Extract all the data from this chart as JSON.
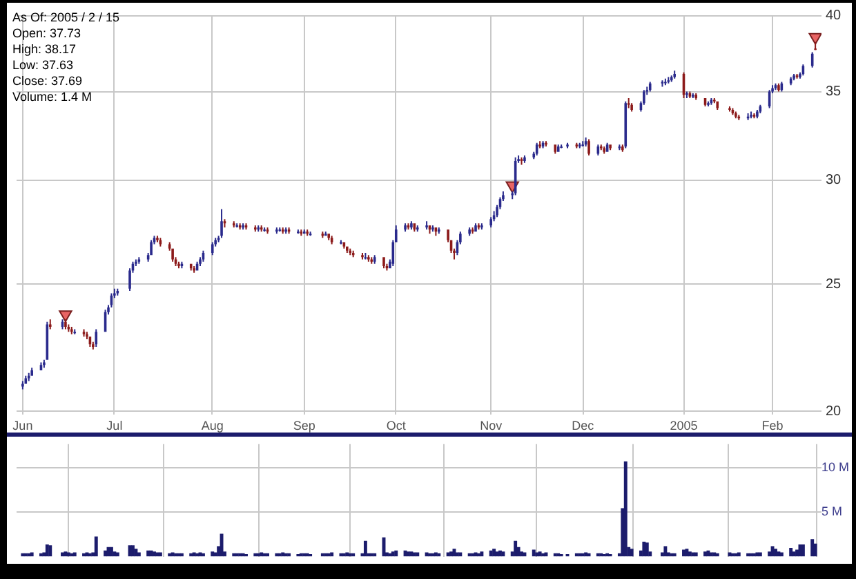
{
  "chart_data": [
    {
      "type": "candlestick",
      "x": [
        "2004-06-01",
        "2004-06-02",
        "2004-06-03",
        "2004-06-04",
        "2004-06-07",
        "2004-06-08",
        "2004-06-09",
        "2004-06-10",
        "2004-06-14",
        "2004-06-15",
        "2004-06-16",
        "2004-06-17",
        "2004-06-18",
        "2004-06-21",
        "2004-06-22",
        "2004-06-23",
        "2004-06-24",
        "2004-06-25",
        "2004-06-28",
        "2004-06-29",
        "2004-06-30",
        "2004-07-01",
        "2004-07-02",
        "2004-07-06",
        "2004-07-07",
        "2004-07-08",
        "2004-07-09",
        "2004-07-12",
        "2004-07-13",
        "2004-07-14",
        "2004-07-15",
        "2004-07-16",
        "2004-07-19",
        "2004-07-20",
        "2004-07-21",
        "2004-07-22",
        "2004-07-23",
        "2004-07-26",
        "2004-07-27",
        "2004-07-28",
        "2004-07-29",
        "2004-07-30",
        "2004-08-02",
        "2004-08-03",
        "2004-08-04",
        "2004-08-05",
        "2004-08-06",
        "2004-08-09",
        "2004-08-10",
        "2004-08-11",
        "2004-08-12",
        "2004-08-13",
        "2004-08-16",
        "2004-08-17",
        "2004-08-18",
        "2004-08-19",
        "2004-08-20",
        "2004-08-23",
        "2004-08-24",
        "2004-08-25",
        "2004-08-26",
        "2004-08-27",
        "2004-08-30",
        "2004-08-31",
        "2004-09-01",
        "2004-09-02",
        "2004-09-03",
        "2004-09-07",
        "2004-09-08",
        "2004-09-09",
        "2004-09-10",
        "2004-09-13",
        "2004-09-14",
        "2004-09-15",
        "2004-09-16",
        "2004-09-17",
        "2004-09-20",
        "2004-09-21",
        "2004-09-22",
        "2004-09-23",
        "2004-09-24",
        "2004-09-27",
        "2004-09-28",
        "2004-09-29",
        "2004-09-30",
        "2004-10-01",
        "2004-10-04",
        "2004-10-05",
        "2004-10-06",
        "2004-10-07",
        "2004-10-08",
        "2004-10-11",
        "2004-10-12",
        "2004-10-13",
        "2004-10-14",
        "2004-10-15",
        "2004-10-18",
        "2004-10-19",
        "2004-10-20",
        "2004-10-21",
        "2004-10-22",
        "2004-10-25",
        "2004-10-26",
        "2004-10-27",
        "2004-10-28",
        "2004-10-29",
        "2004-11-01",
        "2004-11-02",
        "2004-11-03",
        "2004-11-04",
        "2004-11-05",
        "2004-11-08",
        "2004-11-09",
        "2004-11-10",
        "2004-11-11",
        "2004-11-12",
        "2004-11-15",
        "2004-11-16",
        "2004-11-17",
        "2004-11-18",
        "2004-11-19",
        "2004-11-22",
        "2004-11-23",
        "2004-11-24",
        "2004-11-26",
        "2004-11-29",
        "2004-11-30",
        "2004-12-01",
        "2004-12-02",
        "2004-12-03",
        "2004-12-06",
        "2004-12-07",
        "2004-12-08",
        "2004-12-09",
        "2004-12-10",
        "2004-12-13",
        "2004-12-14",
        "2004-12-15",
        "2004-12-16",
        "2004-12-17",
        "2004-12-20",
        "2004-12-21",
        "2004-12-22",
        "2004-12-23",
        "2004-12-27",
        "2004-12-28",
        "2004-12-29",
        "2004-12-30",
        "2004-12-31",
        "2005-01-03",
        "2005-01-04",
        "2005-01-05",
        "2005-01-06",
        "2005-01-07",
        "2005-01-10",
        "2005-01-11",
        "2005-01-12",
        "2005-01-13",
        "2005-01-14",
        "2005-01-18",
        "2005-01-19",
        "2005-01-20",
        "2005-01-21",
        "2005-01-24",
        "2005-01-25",
        "2005-01-26",
        "2005-01-27",
        "2005-01-28",
        "2005-01-31",
        "2005-02-01",
        "2005-02-02",
        "2005-02-03",
        "2005-02-04",
        "2005-02-07",
        "2005-02-08",
        "2005-02-09",
        "2005-02-10",
        "2005-02-11",
        "2005-02-14",
        "2005-02-15"
      ],
      "ohlc": [
        [
          20.9,
          21.1,
          20.8,
          21.0
        ],
        [
          21.0,
          21.3,
          21.0,
          21.2
        ],
        [
          21.2,
          21.4,
          21.1,
          21.3
        ],
        [
          21.3,
          21.6,
          21.3,
          21.5
        ],
        [
          21.5,
          21.8,
          21.5,
          21.7
        ],
        [
          21.7,
          21.9,
          21.6,
          21.8
        ],
        [
          21.9,
          23.4,
          21.9,
          23.3
        ],
        [
          23.3,
          23.5,
          23.1,
          23.2
        ],
        [
          23.2,
          23.5,
          23.1,
          23.4
        ],
        [
          23.4,
          23.5,
          23.1,
          23.2
        ],
        [
          23.2,
          23.3,
          23.0,
          23.1
        ],
        [
          23.1,
          23.2,
          22.9,
          23.0
        ],
        [
          23.0,
          23.1,
          22.9,
          23.0
        ],
        [
          23.0,
          23.1,
          22.8,
          22.9
        ],
        [
          22.9,
          23.0,
          22.7,
          22.8
        ],
        [
          22.8,
          22.8,
          22.4,
          22.5
        ],
        [
          22.5,
          22.6,
          22.3,
          22.4
        ],
        [
          22.5,
          23.1,
          22.4,
          23.0
        ],
        [
          23.0,
          23.9,
          23.0,
          23.8
        ],
        [
          23.8,
          24.1,
          23.7,
          24.0
        ],
        [
          24.1,
          24.6,
          24.0,
          24.5
        ],
        [
          24.5,
          24.8,
          24.4,
          24.6
        ],
        [
          24.6,
          24.8,
          24.5,
          24.7
        ],
        [
          24.8,
          25.7,
          24.7,
          25.6
        ],
        [
          25.6,
          26.0,
          25.5,
          25.9
        ],
        [
          25.9,
          26.1,
          25.8,
          26.0
        ],
        [
          26.0,
          26.2,
          25.9,
          26.1
        ],
        [
          26.1,
          26.4,
          26.0,
          26.3
        ],
        [
          26.3,
          27.0,
          26.3,
          26.9
        ],
        [
          26.9,
          27.2,
          26.8,
          27.1
        ],
        [
          27.1,
          27.2,
          26.9,
          27.0
        ],
        [
          27.0,
          27.1,
          26.7,
          26.8
        ],
        [
          26.8,
          26.9,
          26.5,
          26.6
        ],
        [
          26.6,
          26.6,
          26.0,
          26.1
        ],
        [
          26.1,
          26.2,
          25.8,
          25.9
        ],
        [
          25.9,
          26.0,
          25.7,
          25.8
        ],
        [
          25.8,
          26.0,
          25.7,
          25.9
        ],
        [
          25.9,
          25.9,
          25.6,
          25.7
        ],
        [
          25.7,
          25.8,
          25.5,
          25.6
        ],
        [
          25.6,
          26.0,
          25.6,
          25.9
        ],
        [
          25.9,
          26.2,
          25.8,
          26.1
        ],
        [
          26.1,
          26.5,
          26.0,
          26.4
        ],
        [
          26.4,
          26.9,
          26.3,
          26.8
        ],
        [
          26.8,
          27.1,
          26.7,
          27.0
        ],
        [
          27.0,
          27.2,
          26.9,
          27.1
        ],
        [
          27.2,
          28.5,
          27.1,
          27.9
        ],
        [
          27.9,
          28.0,
          27.6,
          27.8
        ],
        [
          27.8,
          27.9,
          27.6,
          27.7
        ],
        [
          27.7,
          27.8,
          27.6,
          27.7
        ],
        [
          27.7,
          27.8,
          27.5,
          27.6
        ],
        [
          27.6,
          27.8,
          27.5,
          27.7
        ],
        [
          27.7,
          27.8,
          27.5,
          27.6
        ],
        [
          27.6,
          27.7,
          27.4,
          27.5
        ],
        [
          27.5,
          27.7,
          27.4,
          27.6
        ],
        [
          27.6,
          27.7,
          27.4,
          27.5
        ],
        [
          27.5,
          27.6,
          27.4,
          27.5
        ],
        [
          27.5,
          27.6,
          27.3,
          27.4
        ],
        [
          27.4,
          27.6,
          27.3,
          27.5
        ],
        [
          27.5,
          27.6,
          27.4,
          27.5
        ],
        [
          27.5,
          27.6,
          27.3,
          27.4
        ],
        [
          27.4,
          27.6,
          27.3,
          27.5
        ],
        [
          27.5,
          27.6,
          27.3,
          27.4
        ],
        [
          27.4,
          27.5,
          27.3,
          27.4
        ],
        [
          27.4,
          27.5,
          27.2,
          27.3
        ],
        [
          27.3,
          27.5,
          27.3,
          27.4
        ],
        [
          27.4,
          27.5,
          27.2,
          27.3
        ],
        [
          27.3,
          27.4,
          27.2,
          27.3
        ],
        [
          27.3,
          27.4,
          27.1,
          27.2
        ],
        [
          27.2,
          27.4,
          27.2,
          27.3
        ],
        [
          27.3,
          27.3,
          27.0,
          27.1
        ],
        [
          27.1,
          27.2,
          26.8,
          26.9
        ],
        [
          26.9,
          27.0,
          26.8,
          26.9
        ],
        [
          26.9,
          26.9,
          26.6,
          26.7
        ],
        [
          26.7,
          26.7,
          26.4,
          26.5
        ],
        [
          26.5,
          26.6,
          26.3,
          26.4
        ],
        [
          26.4,
          26.5,
          26.2,
          26.3
        ],
        [
          26.3,
          26.4,
          26.1,
          26.2
        ],
        [
          26.2,
          26.4,
          26.1,
          26.2
        ],
        [
          26.2,
          26.3,
          26.0,
          26.1
        ],
        [
          26.1,
          26.2,
          25.9,
          26.0
        ],
        [
          26.0,
          26.3,
          25.9,
          26.2
        ],
        [
          26.2,
          26.2,
          25.7,
          25.8
        ],
        [
          25.8,
          25.9,
          25.6,
          25.7
        ],
        [
          25.7,
          26.1,
          25.7,
          26.0
        ],
        [
          25.9,
          27.0,
          25.8,
          26.9
        ],
        [
          26.9,
          27.7,
          26.9,
          27.5
        ],
        [
          27.5,
          27.8,
          27.4,
          27.7
        ],
        [
          27.7,
          27.8,
          27.5,
          27.6
        ],
        [
          27.6,
          27.9,
          27.5,
          27.8
        ],
        [
          27.8,
          27.8,
          27.4,
          27.5
        ],
        [
          27.5,
          27.7,
          27.4,
          27.6
        ],
        [
          27.6,
          27.9,
          27.5,
          27.7
        ],
        [
          27.7,
          27.7,
          27.3,
          27.5
        ],
        [
          27.5,
          27.7,
          27.4,
          27.6
        ],
        [
          27.6,
          27.6,
          27.2,
          27.4
        ],
        [
          27.4,
          27.6,
          27.3,
          27.5
        ],
        [
          27.5,
          27.5,
          26.9,
          27.0
        ],
        [
          27.0,
          27.0,
          26.4,
          26.5
        ],
        [
          26.5,
          26.6,
          26.1,
          26.4
        ],
        [
          26.4,
          27.0,
          26.3,
          26.9
        ],
        [
          26.9,
          27.4,
          26.8,
          27.3
        ],
        [
          27.3,
          27.6,
          27.2,
          27.5
        ],
        [
          27.5,
          27.6,
          27.3,
          27.4
        ],
        [
          27.4,
          27.8,
          27.4,
          27.7
        ],
        [
          27.7,
          27.8,
          27.5,
          27.6
        ],
        [
          27.6,
          27.8,
          27.5,
          27.7
        ],
        [
          27.7,
          28.1,
          27.6,
          28.0
        ],
        [
          28.0,
          28.4,
          27.9,
          28.2
        ],
        [
          28.2,
          28.7,
          28.1,
          28.6
        ],
        [
          28.6,
          29.1,
          28.5,
          29.0
        ],
        [
          29.0,
          29.4,
          28.9,
          29.2
        ],
        [
          29.2,
          29.4,
          29.0,
          29.3
        ],
        [
          29.3,
          31.2,
          29.2,
          31.0
        ],
        [
          31.0,
          31.3,
          30.9,
          31.1
        ],
        [
          31.1,
          31.2,
          30.8,
          31.0
        ],
        [
          31.0,
          31.3,
          30.9,
          31.2
        ],
        [
          31.2,
          31.5,
          31.1,
          31.4
        ],
        [
          31.4,
          32.0,
          31.3,
          31.9
        ],
        [
          31.9,
          32.1,
          31.7,
          31.8
        ],
        [
          31.8,
          32.1,
          31.7,
          32.0
        ],
        [
          32.0,
          32.1,
          31.8,
          31.9
        ],
        [
          31.9,
          31.9,
          31.4,
          31.5
        ],
        [
          31.5,
          31.9,
          31.5,
          31.8
        ],
        [
          31.8,
          31.9,
          31.7,
          31.8
        ],
        [
          31.8,
          32.0,
          31.7,
          31.9
        ],
        [
          31.9,
          32.0,
          31.7,
          31.8
        ],
        [
          31.8,
          32.0,
          31.7,
          31.9
        ],
        [
          31.9,
          32.1,
          31.8,
          31.9
        ],
        [
          31.9,
          32.3,
          31.8,
          32.1
        ],
        [
          32.1,
          32.2,
          31.3,
          31.4
        ],
        [
          31.4,
          31.9,
          31.3,
          31.8
        ],
        [
          31.8,
          31.9,
          31.6,
          31.7
        ],
        [
          31.7,
          31.8,
          31.4,
          31.5
        ],
        [
          31.5,
          32.0,
          31.5,
          31.9
        ],
        [
          31.9,
          31.9,
          31.6,
          31.7
        ],
        [
          31.7,
          31.9,
          31.6,
          31.8
        ],
        [
          31.8,
          31.9,
          31.5,
          31.6
        ],
        [
          31.8,
          34.4,
          31.7,
          34.3
        ],
        [
          34.3,
          34.6,
          34.0,
          34.2
        ],
        [
          34.2,
          34.3,
          33.8,
          33.9
        ],
        [
          33.9,
          34.4,
          33.8,
          34.3
        ],
        [
          34.3,
          35.1,
          34.2,
          35.0
        ],
        [
          35.0,
          35.3,
          34.8,
          35.1
        ],
        [
          35.1,
          35.6,
          35.0,
          35.5
        ],
        [
          35.5,
          35.7,
          35.3,
          35.6
        ],
        [
          35.6,
          35.8,
          35.4,
          35.6
        ],
        [
          35.6,
          35.9,
          35.5,
          35.7
        ],
        [
          35.7,
          36.0,
          35.6,
          35.9
        ],
        [
          35.9,
          36.3,
          35.8,
          36.1
        ],
        [
          36.1,
          36.2,
          34.6,
          34.8
        ],
        [
          34.8,
          35.0,
          34.6,
          34.9
        ],
        [
          34.9,
          35.0,
          34.6,
          34.7
        ],
        [
          34.7,
          34.9,
          34.6,
          34.8
        ],
        [
          34.8,
          34.9,
          34.5,
          34.6
        ],
        [
          34.6,
          34.6,
          34.1,
          34.2
        ],
        [
          34.2,
          34.4,
          34.1,
          34.3
        ],
        [
          34.3,
          34.6,
          34.2,
          34.5
        ],
        [
          34.5,
          34.6,
          34.3,
          34.4
        ],
        [
          34.4,
          34.4,
          33.9,
          34.0
        ],
        [
          34.0,
          34.1,
          33.8,
          33.9
        ],
        [
          33.9,
          34.0,
          33.6,
          33.7
        ],
        [
          33.7,
          33.8,
          33.4,
          33.5
        ],
        [
          33.5,
          33.6,
          33.3,
          33.4
        ],
        [
          33.4,
          33.7,
          33.3,
          33.5
        ],
        [
          33.5,
          33.8,
          33.4,
          33.6
        ],
        [
          33.6,
          33.7,
          33.4,
          33.5
        ],
        [
          33.5,
          33.9,
          33.4,
          33.8
        ],
        [
          33.8,
          34.2,
          33.7,
          34.1
        ],
        [
          34.1,
          35.1,
          34.0,
          35.0
        ],
        [
          35.0,
          35.4,
          34.9,
          35.2
        ],
        [
          35.2,
          35.5,
          35.1,
          35.4
        ],
        [
          35.4,
          35.5,
          35.0,
          35.1
        ],
        [
          35.1,
          35.6,
          35.0,
          35.5
        ],
        [
          35.5,
          35.9,
          35.4,
          35.8
        ],
        [
          35.8,
          36.1,
          35.7,
          36.0
        ],
        [
          36.0,
          36.1,
          35.8,
          35.9
        ],
        [
          35.9,
          36.2,
          35.8,
          36.1
        ],
        [
          36.1,
          36.7,
          36.0,
          36.6
        ],
        [
          36.6,
          37.5,
          36.5,
          37.4
        ],
        [
          37.73,
          38.17,
          37.63,
          37.69
        ]
      ],
      "colors": [
        "#2a2a8c",
        "#2a2a8c",
        "#2a2a8c",
        "#2a2a8c",
        "#2a2a8c",
        "#2a2a8c",
        "#2a2a8c",
        "#8c1a1a",
        "#2a2a8c",
        "#8c1a1a",
        "#8c1a1a",
        "#8c1a1a",
        "#2a2a8c",
        "#8c1a1a",
        "#8c1a1a",
        "#8c1a1a",
        "#8c1a1a",
        "#2a2a8c",
        "#2a2a8c",
        "#2a2a8c",
        "#2a2a8c",
        "#2a2a8c",
        "#2a2a8c",
        "#2a2a8c",
        "#2a2a8c",
        "#2a2a8c",
        "#2a2a8c",
        "#2a2a8c",
        "#2a2a8c",
        "#2a2a8c",
        "#8c1a1a",
        "#8c1a1a",
        "#8c1a1a",
        "#8c1a1a",
        "#8c1a1a",
        "#8c1a1a",
        "#2a2a8c",
        "#8c1a1a",
        "#8c1a1a",
        "#2a2a8c",
        "#2a2a8c",
        "#2a2a8c",
        "#2a2a8c",
        "#2a2a8c",
        "#2a2a8c",
        "#2a2a8c",
        "#8c1a1a",
        "#8c1a1a",
        "#2a2a8c",
        "#8c1a1a",
        "#2a2a8c",
        "#8c1a1a",
        "#8c1a1a",
        "#2a2a8c",
        "#8c1a1a",
        "#2a2a8c",
        "#8c1a1a",
        "#2a2a8c",
        "#2a2a8c",
        "#8c1a1a",
        "#2a2a8c",
        "#8c1a1a",
        "#2a2a8c",
        "#8c1a1a",
        "#2a2a8c",
        "#8c1a1a",
        "#2a2a8c",
        "#8c1a1a",
        "#2a2a8c",
        "#8c1a1a",
        "#8c1a1a",
        "#2a2a8c",
        "#8c1a1a",
        "#8c1a1a",
        "#8c1a1a",
        "#8c1a1a",
        "#8c1a1a",
        "#2a2a8c",
        "#8c1a1a",
        "#8c1a1a",
        "#2a2a8c",
        "#8c1a1a",
        "#8c1a1a",
        "#2a2a8c",
        "#2a2a8c",
        "#2a2a8c",
        "#2a2a8c",
        "#8c1a1a",
        "#2a2a8c",
        "#8c1a1a",
        "#2a2a8c",
        "#2a2a8c",
        "#8c1a1a",
        "#2a2a8c",
        "#8c1a1a",
        "#2a2a8c",
        "#8c1a1a",
        "#8c1a1a",
        "#8c1a1a",
        "#2a2a8c",
        "#2a2a8c",
        "#2a2a8c",
        "#8c1a1a",
        "#2a2a8c",
        "#8c1a1a",
        "#2a2a8c",
        "#2a2a8c",
        "#2a2a8c",
        "#2a2a8c",
        "#2a2a8c",
        "#2a2a8c",
        "#2a2a8c",
        "#2a2a8c",
        "#2a2a8c",
        "#8c1a1a",
        "#2a2a8c",
        "#2a2a8c",
        "#2a2a8c",
        "#8c1a1a",
        "#2a2a8c",
        "#8c1a1a",
        "#8c1a1a",
        "#2a2a8c",
        "#2a2a8c",
        "#2a2a8c",
        "#8c1a1a",
        "#2a2a8c",
        "#2a2a8c",
        "#2a2a8c",
        "#8c1a1a",
        "#2a2a8c",
        "#8c1a1a",
        "#8c1a1a",
        "#2a2a8c",
        "#8c1a1a",
        "#2a2a8c",
        "#8c1a1a",
        "#2a2a8c",
        "#8c1a1a",
        "#8c1a1a",
        "#2a2a8c",
        "#2a2a8c",
        "#2a2a8c",
        "#2a2a8c",
        "#2a2a8c",
        "#2a2a8c",
        "#2a2a8c",
        "#2a2a8c",
        "#2a2a8c",
        "#8c1a1a",
        "#2a2a8c",
        "#8c1a1a",
        "#2a2a8c",
        "#8c1a1a",
        "#8c1a1a",
        "#2a2a8c",
        "#2a2a8c",
        "#8c1a1a",
        "#8c1a1a",
        "#8c1a1a",
        "#8c1a1a",
        "#8c1a1a",
        "#8c1a1a",
        "#2a2a8c",
        "#2a2a8c",
        "#8c1a1a",
        "#2a2a8c",
        "#2a2a8c",
        "#2a2a8c",
        "#2a2a8c",
        "#2a2a8c",
        "#8c1a1a",
        "#2a2a8c",
        "#2a2a8c",
        "#2a2a8c",
        "#8c1a1a",
        "#2a2a8c",
        "#2a2a8c",
        "#2a2a8c",
        "#8c1a1a"
      ],
      "series": [
        {
          "type": "scatter",
          "x": [
            "2004-06-15",
            "2004-11-08",
            "2005-02-15"
          ],
          "values": [
            23.7,
            29.7,
            38.5
          ],
          "color": "#e86464",
          "marker": "triangle"
        }
      ],
      "xlim": [
        "2004-05-30",
        "2005-02-17"
      ],
      "xticks": [
        {
          "value": "2004-06-01",
          "label": "Jun"
        },
        {
          "value": "2004-07-01",
          "label": "Jul"
        },
        {
          "value": "2004-08-02",
          "label": "Aug"
        },
        {
          "value": "2004-09-01",
          "label": "Sep"
        },
        {
          "value": "2004-10-01",
          "label": "Oct"
        },
        {
          "value": "2004-11-01",
          "label": "Nov"
        },
        {
          "value": "2004-12-01",
          "label": "Dec"
        },
        {
          "value": "2005-01-03",
          "label": "2005"
        },
        {
          "value": "2005-02-01",
          "label": "Feb"
        }
      ],
      "ylim": [
        19.9,
        40
      ],
      "yticks": [
        20,
        25,
        30,
        35,
        40
      ],
      "log": true,
      "grid": true,
      "annotations": [
        "As Of: 2005 / 2 / 15",
        "Open: 37.73",
        "High: 38.17",
        "Low: 37.63",
        "Close: 37.69",
        "Volume: 1.4 M"
      ]
    },
    {
      "type": "bar",
      "x": [
        "2004-06-01",
        "2004-06-02",
        "2004-06-03",
        "2004-06-04",
        "2004-06-07",
        "2004-06-08",
        "2004-06-09",
        "2004-06-10",
        "2004-06-14",
        "2004-06-15",
        "2004-06-16",
        "2004-06-17",
        "2004-06-18",
        "2004-06-21",
        "2004-06-22",
        "2004-06-23",
        "2004-06-24",
        "2004-06-25",
        "2004-06-28",
        "2004-06-29",
        "2004-06-30",
        "2004-07-01",
        "2004-07-02",
        "2004-07-06",
        "2004-07-07",
        "2004-07-08",
        "2004-07-09",
        "2004-07-12",
        "2004-07-13",
        "2004-07-14",
        "2004-07-15",
        "2004-07-16",
        "2004-07-19",
        "2004-07-20",
        "2004-07-21",
        "2004-07-22",
        "2004-07-23",
        "2004-07-26",
        "2004-07-27",
        "2004-07-28",
        "2004-07-29",
        "2004-07-30",
        "2004-08-02",
        "2004-08-03",
        "2004-08-04",
        "2004-08-05",
        "2004-08-06",
        "2004-08-09",
        "2004-08-10",
        "2004-08-11",
        "2004-08-12",
        "2004-08-13",
        "2004-08-16",
        "2004-08-17",
        "2004-08-18",
        "2004-08-19",
        "2004-08-20",
        "2004-08-23",
        "2004-08-24",
        "2004-08-25",
        "2004-08-26",
        "2004-08-27",
        "2004-08-30",
        "2004-08-31",
        "2004-09-01",
        "2004-09-02",
        "2004-09-03",
        "2004-09-07",
        "2004-09-08",
        "2004-09-09",
        "2004-09-10",
        "2004-09-13",
        "2004-09-14",
        "2004-09-15",
        "2004-09-16",
        "2004-09-17",
        "2004-09-20",
        "2004-09-21",
        "2004-09-22",
        "2004-09-23",
        "2004-09-24",
        "2004-09-27",
        "2004-09-28",
        "2004-09-29",
        "2004-09-30",
        "2004-10-01",
        "2004-10-04",
        "2004-10-05",
        "2004-10-06",
        "2004-10-07",
        "2004-10-08",
        "2004-10-11",
        "2004-10-12",
        "2004-10-13",
        "2004-10-14",
        "2004-10-15",
        "2004-10-18",
        "2004-10-19",
        "2004-10-20",
        "2004-10-21",
        "2004-10-22",
        "2004-10-25",
        "2004-10-26",
        "2004-10-27",
        "2004-10-28",
        "2004-10-29",
        "2004-11-01",
        "2004-11-02",
        "2004-11-03",
        "2004-11-04",
        "2004-11-05",
        "2004-11-08",
        "2004-11-09",
        "2004-11-10",
        "2004-11-11",
        "2004-11-12",
        "2004-11-15",
        "2004-11-16",
        "2004-11-17",
        "2004-11-18",
        "2004-11-19",
        "2004-11-22",
        "2004-11-23",
        "2004-11-24",
        "2004-11-26",
        "2004-11-29",
        "2004-11-30",
        "2004-12-01",
        "2004-12-02",
        "2004-12-03",
        "2004-12-06",
        "2004-12-07",
        "2004-12-08",
        "2004-12-09",
        "2004-12-10",
        "2004-12-13",
        "2004-12-14",
        "2004-12-15",
        "2004-12-16",
        "2004-12-17",
        "2004-12-20",
        "2004-12-21",
        "2004-12-22",
        "2004-12-23",
        "2004-12-27",
        "2004-12-28",
        "2004-12-29",
        "2004-12-30",
        "2004-12-31",
        "2005-01-03",
        "2005-01-04",
        "2005-01-05",
        "2005-01-06",
        "2005-01-07",
        "2005-01-10",
        "2005-01-11",
        "2005-01-12",
        "2005-01-13",
        "2005-01-14",
        "2005-01-18",
        "2005-01-19",
        "2005-01-20",
        "2005-01-21",
        "2005-01-24",
        "2005-01-25",
        "2005-01-26",
        "2005-01-27",
        "2005-01-28",
        "2005-01-31",
        "2005-02-01",
        "2005-02-02",
        "2005-02-03",
        "2005-02-04",
        "2005-02-07",
        "2005-02-08",
        "2005-02-09",
        "2005-02-10",
        "2005-02-11",
        "2005-02-14",
        "2005-02-15"
      ],
      "values": [
        0.3,
        0.3,
        0.3,
        0.4,
        0.3,
        0.4,
        1.3,
        1.2,
        0.4,
        0.5,
        0.4,
        0.3,
        0.4,
        0.3,
        0.4,
        0.3,
        0.4,
        2.2,
        0.6,
        1.0,
        1.0,
        0.5,
        0.4,
        1.2,
        1.2,
        0.8,
        0.4,
        0.6,
        0.6,
        0.5,
        0.4,
        0.4,
        0.3,
        0.4,
        0.3,
        0.3,
        0.3,
        0.3,
        0.4,
        0.3,
        0.4,
        0.3,
        0.5,
        0.4,
        1.1,
        2.5,
        0.5,
        0.3,
        0.3,
        0.3,
        0.3,
        0.2,
        0.3,
        0.3,
        0.4,
        0.3,
        0.3,
        0.3,
        0.3,
        0.4,
        0.3,
        0.3,
        0.2,
        0.3,
        0.3,
        0.3,
        0.2,
        0.3,
        0.3,
        0.3,
        0.4,
        0.3,
        0.3,
        0.4,
        0.3,
        0.3,
        0.3,
        1.7,
        0.3,
        0.3,
        0.3,
        2.1,
        0.4,
        0.3,
        0.5,
        0.6,
        0.6,
        0.5,
        0.5,
        0.4,
        0.4,
        0.4,
        0.3,
        0.3,
        0.4,
        0.3,
        0.4,
        0.5,
        0.8,
        0.4,
        0.4,
        0.3,
        0.3,
        0.4,
        0.3,
        0.5,
        0.6,
        0.8,
        0.5,
        0.6,
        0.5,
        0.5,
        1.7,
        1.0,
        0.5,
        0.4,
        0.7,
        0.4,
        0.5,
        0.3,
        0.4,
        0.3,
        0.3,
        0.2,
        0.2,
        0.3,
        0.3,
        0.3,
        0.4,
        0.3,
        0.3,
        0.3,
        0.2,
        0.3,
        0.2,
        0.3,
        5.4,
        10.7,
        1.0,
        0.8,
        0.6,
        1.6,
        1.5,
        0.5,
        0.4,
        1.1,
        0.4,
        0.3,
        0.3,
        0.7,
        0.8,
        0.5,
        0.4,
        0.4,
        0.5,
        0.6,
        0.4,
        0.4,
        0.3,
        0.4,
        0.3,
        0.3,
        0.4,
        0.3,
        0.3,
        0.3,
        0.4,
        0.4,
        0.5,
        1.1,
        0.8,
        0.5,
        0.4,
        0.9,
        0.5,
        0.7,
        1.3,
        1.3,
        1.9,
        1.4
      ],
      "color": "#1c1c6c",
      "xlim": [
        "2004-05-30",
        "2005-02-17"
      ],
      "xticks": [
        {
          "value": "2004-06-01",
          "label": null
        },
        {
          "value": "2004-07-01",
          "label": null
        },
        {
          "value": "2004-08-02",
          "label": null
        },
        {
          "value": "2004-09-01",
          "label": null
        },
        {
          "value": "2004-10-01",
          "label": null
        },
        {
          "value": "2004-11-01",
          "label": null
        },
        {
          "value": "2004-12-01",
          "label": null
        },
        {
          "value": "2005-01-03",
          "label": null
        },
        {
          "value": "2005-02-01",
          "label": null
        }
      ],
      "ylim": [
        0,
        12.7
      ],
      "yticks": [
        {
          "value": 5,
          "label": "5 M"
        },
        {
          "value": 10,
          "label": "10 M"
        }
      ],
      "grid": true,
      "tick_labels": "y"
    }
  ]
}
